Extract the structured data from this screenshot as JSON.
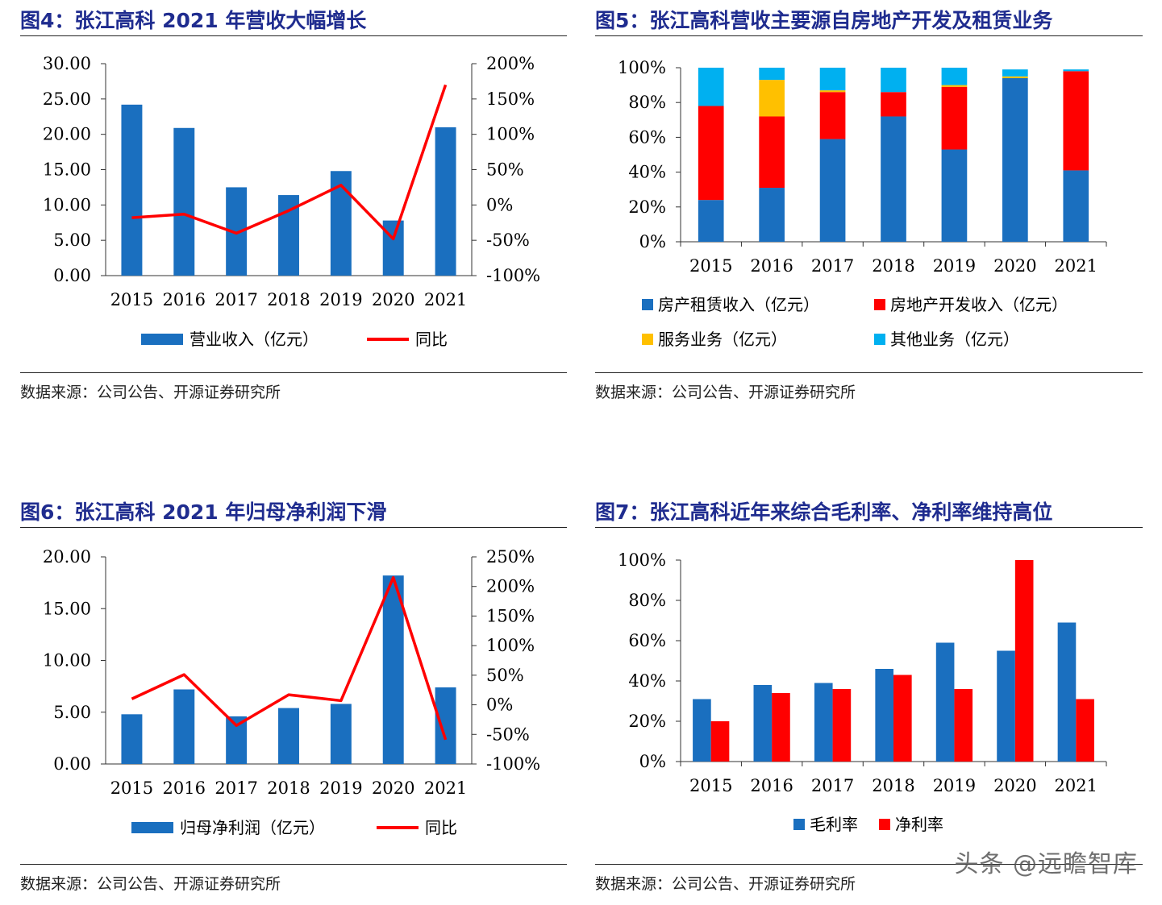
{
  "figures": [
    {
      "title": "图4：张江高科 2021 年营收大幅增长",
      "source": "数据来源：公司公告、开源证券研究所"
    },
    {
      "title": "图5：张江高科营收主要源自房地产开发及租赁业务",
      "source": "数据来源：公司公告、开源证券研究所"
    },
    {
      "title": "图6：张江高科 2021 年归母净利润下滑",
      "source": "数据来源：公司公告、开源证券研究所"
    },
    {
      "title": "图7：张江高科近年来综合毛利率、净利率维持高位",
      "source": "数据来源：公司公告、开源证券研究所"
    }
  ],
  "watermark": "头条 @远瞻智库",
  "colors": {
    "blue": "#1A6FBF",
    "red": "#FF0000",
    "yellow": "#FFC000",
    "cyan": "#00B0F0",
    "title": "#1F2C8F"
  },
  "chart_data": [
    {
      "type": "bar",
      "categories": [
        "2015",
        "2016",
        "2017",
        "2018",
        "2019",
        "2020",
        "2021"
      ],
      "series": [
        {
          "name": "营业收入（亿元）",
          "type": "bar",
          "axis": "left",
          "color": "#1A6FBF",
          "values": [
            24.2,
            20.9,
            12.5,
            11.4,
            14.8,
            7.8,
            21.0
          ]
        },
        {
          "name": "同比",
          "type": "line",
          "axis": "right",
          "color": "#FF0000",
          "values": [
            -18,
            -13,
            -40,
            -8,
            28,
            -48,
            170
          ]
        }
      ],
      "ylim": [
        0,
        30
      ],
      "y_ticks": [
        "0.00",
        "5.00",
        "10.00",
        "15.00",
        "20.00",
        "25.00",
        "30.00"
      ],
      "y2lim": [
        -100,
        200
      ],
      "y2_ticks": [
        "-100%",
        "-50%",
        "0%",
        "50%",
        "100%",
        "150%",
        "200%"
      ],
      "legend": "bottom"
    },
    {
      "type": "bar",
      "stacked": true,
      "categories": [
        "2015",
        "2016",
        "2017",
        "2018",
        "2019",
        "2020",
        "2021"
      ],
      "series": [
        {
          "name": "房产租赁收入（亿元）",
          "color": "#1A6FBF",
          "values": [
            24,
            31,
            59,
            72,
            53,
            94,
            41
          ]
        },
        {
          "name": "房地产开发收入（亿元）",
          "color": "#FF0000",
          "values": [
            54,
            41,
            27,
            14,
            36,
            0,
            57
          ]
        },
        {
          "name": "服务业务（亿元）",
          "color": "#FFC000",
          "values": [
            0,
            21,
            1,
            0,
            1,
            1,
            0
          ]
        },
        {
          "name": "其他业务（亿元）",
          "color": "#00B0F0",
          "values": [
            22,
            7,
            13,
            14,
            10,
            4,
            1
          ]
        }
      ],
      "ylim": [
        0,
        100
      ],
      "y_ticks": [
        "0%",
        "20%",
        "40%",
        "60%",
        "80%",
        "100%"
      ],
      "legend": "bottom"
    },
    {
      "type": "bar",
      "categories": [
        "2015",
        "2016",
        "2017",
        "2018",
        "2019",
        "2020",
        "2021"
      ],
      "series": [
        {
          "name": "归母净利润（亿元）",
          "type": "bar",
          "axis": "left",
          "color": "#1A6FBF",
          "values": [
            4.8,
            7.2,
            4.6,
            5.4,
            5.8,
            18.2,
            7.4
          ]
        },
        {
          "name": "同比",
          "type": "line",
          "axis": "right",
          "color": "#FF0000",
          "values": [
            10,
            51,
            -35,
            17,
            7,
            215,
            -59
          ]
        }
      ],
      "ylim": [
        0,
        20
      ],
      "y_ticks": [
        "0.00",
        "5.00",
        "10.00",
        "15.00",
        "20.00"
      ],
      "y2lim": [
        -100,
        250
      ],
      "y2_ticks": [
        "-100%",
        "-50%",
        "0%",
        "50%",
        "100%",
        "150%",
        "200%",
        "250%"
      ],
      "legend": "bottom"
    },
    {
      "type": "bar",
      "categories": [
        "2015",
        "2016",
        "2017",
        "2018",
        "2019",
        "2020",
        "2021"
      ],
      "series": [
        {
          "name": "毛利率",
          "color": "#1A6FBF",
          "values": [
            31,
            38,
            39,
            46,
            59,
            55,
            69
          ]
        },
        {
          "name": "净利率",
          "color": "#FF0000",
          "values": [
            20,
            34,
            36,
            43,
            36,
            100,
            31
          ]
        }
      ],
      "ylim": [
        0,
        100
      ],
      "y_ticks": [
        "0%",
        "20%",
        "40%",
        "60%",
        "80%",
        "100%"
      ],
      "legend": "bottom"
    }
  ]
}
